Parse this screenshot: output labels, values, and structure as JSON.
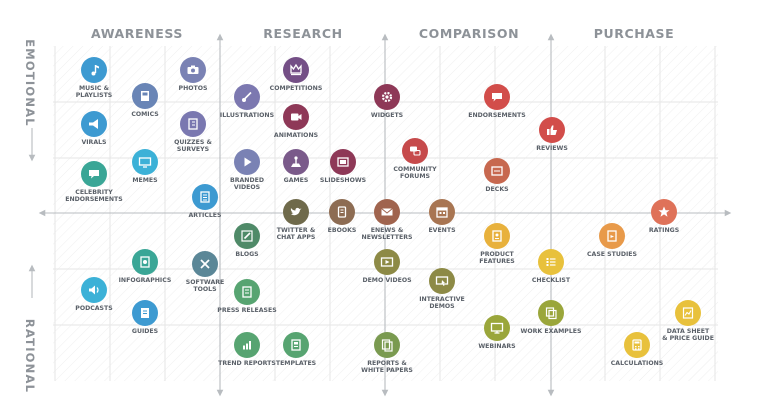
{
  "columns": [
    "AWARENESS",
    "RESEARCH",
    "COMPARISON",
    "PURCHASE"
  ],
  "rows": {
    "top": "EMOTIONAL",
    "bottom": "RATIONAL"
  },
  "colors": {
    "blue": "#3d9ad1",
    "cyan": "#3cb1d7",
    "lavender": "#7a82b4",
    "purple": "#744f86",
    "wine": "#8e3857",
    "red": "#d24d4a",
    "coral": "#df7259",
    "olive": "#6f6a4b",
    "brown": "#8d6c53",
    "tan": "#b4925f",
    "amber": "#e8a73c",
    "gold": "#e8c13c",
    "lime": "#93a53b",
    "teal": "#3aa696",
    "green": "#57a471",
    "slate": "#5b8797"
  },
  "items": [
    {
      "icon": "music-note-icon",
      "label": [
        "MUSIC &",
        "PLAYLISTS"
      ],
      "color": "#3d9ad1"
    },
    {
      "icon": "comic-book-icon",
      "label": [
        "COMICS"
      ],
      "color": "#6985b6"
    },
    {
      "icon": "camera-icon",
      "label": [
        "PHOTOS"
      ],
      "color": "#7a82b4"
    },
    {
      "icon": "competition-crown-icon",
      "label": [
        "COMPETITIONS"
      ],
      "color": "#744f86"
    },
    {
      "icon": "megaphone-icon",
      "label": [
        "VIRALS"
      ],
      "color": "#3d9ad1"
    },
    {
      "icon": "quiz-sheet-icon",
      "label": [
        "QUIZZES &",
        "SURVEYS"
      ],
      "color": "#7a78b0"
    },
    {
      "icon": "paintbrush-icon",
      "label": [
        "ILLUSTRATIONS"
      ],
      "color": "#7c78b0"
    },
    {
      "icon": "animation-video-icon",
      "label": [
        "ANIMATIONS"
      ],
      "color": "#8e3857"
    },
    {
      "icon": "widget-gear-icon",
      "label": [
        "WIDGETS"
      ],
      "color": "#8e3857"
    },
    {
      "icon": "endorsement-bubble-icon",
      "label": [
        "ENDORSEMENTS"
      ],
      "color": "#d24d4a"
    },
    {
      "icon": "thumbs-up-icon",
      "label": [
        "REVIEWS"
      ],
      "color": "#d24d4a"
    },
    {
      "icon": "meme-screen-icon",
      "label": [
        "MEMES"
      ],
      "color": "#3cb1d7"
    },
    {
      "icon": "celebrity-bubble-icon",
      "label": [
        "CELEBRITY",
        "ENDORSEMENTS"
      ],
      "color": "#3aa696"
    },
    {
      "icon": "play-button-icon",
      "label": [
        "BRANDED",
        "VIDEOS"
      ],
      "color": "#7a82b4"
    },
    {
      "icon": "game-joystick-icon",
      "label": [
        "GAMES"
      ],
      "color": "#7a5a8a"
    },
    {
      "icon": "slideshow-icon",
      "label": [
        "SLIDESHOWS"
      ],
      "color": "#8e3857"
    },
    {
      "icon": "forum-bubbles-icon",
      "label": [
        "COMMUNITY",
        "FORUMS"
      ],
      "color": "#c64a4b"
    },
    {
      "icon": "deck-icon",
      "label": [
        "DECKS"
      ],
      "color": "#c7684f"
    },
    {
      "icon": "article-page-icon",
      "label": [
        "ARTICLES"
      ],
      "color": "#3d9ad1"
    },
    {
      "icon": "twitter-bird-icon",
      "label": [
        "TWITTER &",
        "CHAT APPS"
      ],
      "color": "#6f6a4b"
    },
    {
      "icon": "ebook-icon",
      "label": [
        "EBOOKS"
      ],
      "color": "#8d6c53"
    },
    {
      "icon": "envelope-icon",
      "label": [
        "ENEWS &",
        "NEWSLETTERS"
      ],
      "color": "#a0644e"
    },
    {
      "icon": "calendar-icon",
      "label": [
        "EVENTS"
      ],
      "color": "#a87552"
    },
    {
      "icon": "star-icon",
      "label": [
        "RATINGS"
      ],
      "color": "#df7259"
    },
    {
      "icon": "blog-pencil-icon",
      "label": [
        "BLOGS"
      ],
      "color": "#4f8a68"
    },
    {
      "icon": "product-sheet-icon",
      "label": [
        "PRODUCT",
        "FEATURES"
      ],
      "color": "#e8b13c"
    },
    {
      "icon": "case-study-icon",
      "label": [
        "CASE STUDIES"
      ],
      "color": "#e89a4a"
    },
    {
      "icon": "infographic-icon",
      "label": [
        "INFOGRAPHICS"
      ],
      "color": "#3aa696"
    },
    {
      "icon": "software-tools-icon",
      "label": [
        "SOFTWARE",
        "TOOLS"
      ],
      "color": "#5b8797"
    },
    {
      "icon": "demo-video-icon",
      "label": [
        "DEMO VIDEOS"
      ],
      "color": "#8d8a46"
    },
    {
      "icon": "checklist-icon",
      "label": [
        "CHECKLIST"
      ],
      "color": "#e8c13c"
    },
    {
      "icon": "podcast-speaker-icon",
      "label": [
        "PODCASTS"
      ],
      "color": "#3cb1d7"
    },
    {
      "icon": "press-release-icon",
      "label": [
        "PRESS RELEASES"
      ],
      "color": "#57a471"
    },
    {
      "icon": "interactive-demo-icon",
      "label": [
        "INTERACTIVE",
        "DEMOS"
      ],
      "color": "#8d8a46"
    },
    {
      "icon": "guide-book-icon",
      "label": [
        "GUIDES"
      ],
      "color": "#3d9ad1"
    },
    {
      "icon": "webinar-screen-icon",
      "label": [
        "WEBINARS"
      ],
      "color": "#9aa63b"
    },
    {
      "icon": "work-examples-icon",
      "label": [
        "WORK EXAMPLES"
      ],
      "color": "#9aa63b"
    },
    {
      "icon": "data-sheet-icon",
      "label": [
        "DATA SHEET",
        "& PRICE GUIDE"
      ],
      "color": "#e8c13c"
    },
    {
      "icon": "trend-report-icon",
      "label": [
        "TREND REPORTS"
      ],
      "color": "#57a471"
    },
    {
      "icon": "templates-icon",
      "label": [
        "TEMPLATES"
      ],
      "color": "#57a471"
    },
    {
      "icon": "white-paper-icon",
      "label": [
        "REPORTS &",
        "WHITE PAPERS"
      ],
      "color": "#7a9a50"
    },
    {
      "icon": "calculator-icon",
      "label": [
        "CALCULATIONS"
      ],
      "color": "#e8c13c"
    }
  ]
}
